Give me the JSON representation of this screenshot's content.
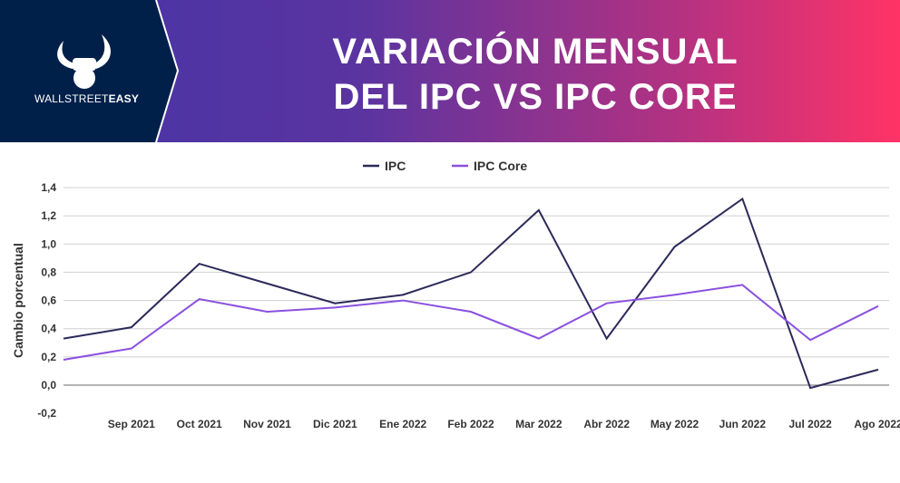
{
  "header": {
    "title_line1": "VARIACIÓN MENSUAL",
    "title_line2": "DEL IPC VS IPC CORE",
    "logo_light": "WALLSTREET",
    "logo_bold": "EASY",
    "logo_icon": "bull-horns-fist-icon",
    "bg_color": "#00204a"
  },
  "chart_data": {
    "type": "line",
    "title": "VARIACIÓN MENSUAL DEL IPC VS IPC CORE",
    "xlabel": "",
    "ylabel": "Cambio porcentual",
    "ylim": [
      -0.2,
      1.4
    ],
    "yticks": [
      "-0,2",
      "0,0",
      "0,2",
      "0,4",
      "0,6",
      "0,8",
      "1,0",
      "1,2",
      "1,4"
    ],
    "categories": [
      "",
      "Sep 2021",
      "Oct 2021",
      "Nov 2021",
      "Dic 2021",
      "Ene 2022",
      "Feb 2022",
      "Mar 2022",
      "Abr 2022",
      "May 2022",
      "Jun 2022",
      "Jul 2022",
      "Ago 2022"
    ],
    "grid": true,
    "legend_position": "top",
    "series": [
      {
        "name": "IPC",
        "color": "#2b2a5a",
        "values": [
          0.33,
          0.41,
          0.86,
          0.72,
          0.58,
          0.64,
          0.8,
          1.24,
          0.33,
          0.98,
          1.32,
          -0.02,
          0.11
        ]
      },
      {
        "name": "IPC Core",
        "color": "#8a50e0",
        "values": [
          0.18,
          0.26,
          0.61,
          0.52,
          0.55,
          0.6,
          0.52,
          0.33,
          0.58,
          0.64,
          0.71,
          0.32,
          0.56
        ]
      }
    ]
  }
}
